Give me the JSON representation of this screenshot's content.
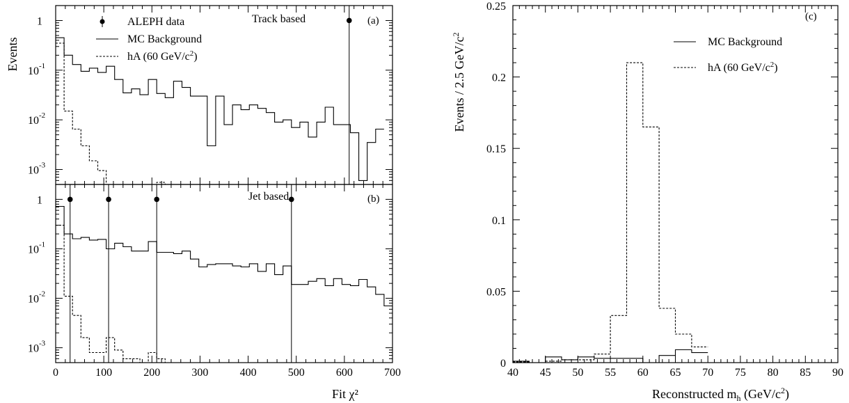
{
  "chart_data": [
    {
      "panel": "(a)",
      "type": "line",
      "title": "Track based",
      "xlabel": "Fit χ²",
      "ylabel": "Events",
      "yscale": "log",
      "xlim": [
        0,
        700
      ],
      "ylim": [
        0.0005,
        2
      ],
      "x_ticks": [
        0,
        100,
        200,
        300,
        400,
        500,
        600,
        700
      ],
      "y_ticks": [
        {
          "value": 1,
          "base": "1",
          "exp": ""
        },
        {
          "value": 0.1,
          "base": "10",
          "exp": "-1"
        },
        {
          "value": 0.01,
          "base": "10",
          "exp": "-2"
        },
        {
          "value": 0.001,
          "base": "10",
          "exp": "-3"
        }
      ],
      "legend": [
        {
          "label": "ALEPH data",
          "style": "marker"
        },
        {
          "label": "MC Background",
          "style": "solid"
        },
        {
          "label": "hA (60 GeV/c",
          "sup": "2",
          "tail": ")",
          "style": "dashed"
        }
      ],
      "legend_position": "top-left",
      "series": [
        {
          "name": "MC Background",
          "style": "solid",
          "bin_edges": [
            0,
            17.5,
            35,
            52.5,
            70,
            87.5,
            105,
            122.5,
            140,
            157.5,
            175,
            192.5,
            210,
            227.5,
            245,
            262.5,
            280,
            297.5,
            315,
            332.5,
            350,
            367.5,
            385,
            402.5,
            420,
            437.5,
            455,
            472.5,
            490,
            507.5,
            525,
            542.5,
            560,
            577.5,
            595,
            612.5,
            630,
            647.5,
            665,
            682.5
          ],
          "values": [
            0.45,
            0.2,
            0.13,
            0.095,
            0.11,
            0.09,
            0.12,
            0.065,
            0.035,
            0.042,
            0.032,
            0.065,
            0.034,
            0.028,
            0.06,
            0.045,
            0.03,
            0.03,
            0.003,
            0.03,
            0.008,
            0.02,
            0.016,
            0.02,
            0.017,
            0.014,
            0.009,
            0.01,
            0.007,
            0.009,
            0.0045,
            0.009,
            0.018,
            0.008,
            0.008,
            0.0055,
            0.0006,
            0.0035,
            0.0065
          ]
        },
        {
          "name": "hA (60 GeV/c²)",
          "style": "dashed",
          "bin_edges": [
            0,
            17.5,
            35,
            52.5,
            70,
            87.5,
            105,
            122.5,
            140,
            157.5,
            175,
            192.5,
            210,
            227.5,
            245,
            262.5,
            280
          ],
          "values": [
            0.35,
            0.015,
            0.0065,
            0.003,
            0.0015,
            0.00095,
            0.0005,
            0.0003,
            0.00018,
            0.0001,
            0.0001,
            0.0001,
            0.00055,
            0.0001,
            0.0001,
            0.0004,
            0.0001
          ]
        }
      ],
      "data_points": [
        {
          "x": 610,
          "y": 1.0,
          "yerr_low": 0.0005,
          "yerr_high": 2.0
        }
      ]
    },
    {
      "panel": "(b)",
      "type": "line",
      "title": "Jet based",
      "xlabel": "Fit χ²",
      "ylabel": "Events",
      "yscale": "log",
      "xlim": [
        0,
        700
      ],
      "ylim": [
        0.0005,
        2
      ],
      "x_ticks": [
        0,
        100,
        200,
        300,
        400,
        500,
        600,
        700
      ],
      "y_ticks": [
        {
          "value": 1,
          "base": "1",
          "exp": ""
        },
        {
          "value": 0.1,
          "base": "10",
          "exp": "-1"
        },
        {
          "value": 0.01,
          "base": "10",
          "exp": "-2"
        },
        {
          "value": 0.001,
          "base": "10",
          "exp": "-3"
        }
      ],
      "series": [
        {
          "name": "MC Background",
          "style": "solid",
          "bin_edges": [
            0,
            17.5,
            35,
            52.5,
            70,
            87.5,
            105,
            122.5,
            140,
            157.5,
            175,
            192.5,
            210,
            227.5,
            245,
            262.5,
            280,
            297.5,
            315,
            332.5,
            350,
            367.5,
            385,
            402.5,
            420,
            437.5,
            455,
            472.5,
            490,
            507.5,
            525,
            542.5,
            560,
            577.5,
            595,
            612.5,
            630,
            647.5,
            665,
            682.5,
            700
          ],
          "values": [
            0.72,
            0.2,
            0.16,
            0.17,
            0.15,
            0.155,
            0.1,
            0.13,
            0.11,
            0.09,
            0.09,
            0.14,
            0.085,
            0.085,
            0.08,
            0.09,
            0.062,
            0.043,
            0.048,
            0.05,
            0.05,
            0.045,
            0.043,
            0.05,
            0.035,
            0.05,
            0.03,
            0.045,
            0.019,
            0.019,
            0.022,
            0.025,
            0.018,
            0.025,
            0.019,
            0.018,
            0.024,
            0.017,
            0.012,
            0.007
          ]
        },
        {
          "name": "hA (60 GeV/c²)",
          "style": "dashed",
          "bin_edges": [
            0,
            17.5,
            35,
            52.5,
            70,
            87.5,
            105,
            122.5,
            140,
            157.5,
            175,
            192.5,
            210,
            227.5,
            245,
            262.5,
            280,
            297.5,
            315,
            332.5,
            350,
            367.5
          ],
          "values": [
            0.3,
            0.011,
            0.0045,
            0.0016,
            0.0008,
            0.0008,
            0.0016,
            0.0009,
            0.0006,
            0.0006,
            0.0001,
            0.0008,
            0.0006,
            0.0001,
            0.0001,
            0.0001,
            0.0001,
            0.0001,
            0.0001,
            0.0004,
            0.0001
          ]
        }
      ],
      "data_points": [
        {
          "x": 30,
          "y": 1.0,
          "yerr_low": 0.0005,
          "yerr_high": 2.0
        },
        {
          "x": 110,
          "y": 1.0,
          "yerr_low": 0.0005,
          "yerr_high": 2.0
        },
        {
          "x": 210,
          "y": 1.0,
          "yerr_low": 0.0005,
          "yerr_high": 2.0
        },
        {
          "x": 490,
          "y": 1.0,
          "yerr_low": 0.0005,
          "yerr_high": 2.0
        }
      ]
    },
    {
      "panel": "(c)",
      "type": "line",
      "xlabel": "Reconstructed m",
      "xlabel_sub": "h",
      "xlabel_tail": " (GeV/c",
      "xlabel_sup": "2",
      "xlabel_end": ")",
      "ylabel": "Events / 2.5 GeV/c",
      "ylabel_sup": "2",
      "xlim": [
        40,
        90
      ],
      "ylim": [
        0,
        0.25
      ],
      "x_ticks": [
        40,
        45,
        50,
        55,
        60,
        65,
        70,
        75,
        80,
        85,
        90
      ],
      "y_ticks": [
        "0",
        "0.05",
        "0.1",
        "0.15",
        "0.2",
        "0.25"
      ],
      "legend": [
        {
          "label": "MC Background",
          "style": "solid"
        },
        {
          "label": "hA (60 GeV/c",
          "sup": "2",
          "tail": ")",
          "style": "dashed"
        }
      ],
      "legend_position": "top-right",
      "series": [
        {
          "name": "MC Background",
          "style": "solid",
          "bin_edges": [
            40,
            42.5,
            45,
            47.5,
            50,
            52.5,
            55,
            57.5,
            60,
            62.5,
            65,
            67.5,
            70
          ],
          "values": [
            0.001,
            0.0,
            0.004,
            0.002,
            0.004,
            0.003,
            0.003,
            0.003,
            0.0,
            0.005,
            0.009,
            0.007
          ]
        },
        {
          "name": "hA (60 GeV/c²)",
          "style": "dashed",
          "bin_edges": [
            40,
            42.5,
            45,
            47.5,
            50,
            52.5,
            55,
            57.5,
            60,
            62.5,
            65,
            67.5,
            70
          ],
          "values": [
            0.0005,
            0.0,
            0.001,
            0.002,
            0.002,
            0.006,
            0.033,
            0.21,
            0.165,
            0.038,
            0.02,
            0.011
          ]
        }
      ]
    }
  ]
}
